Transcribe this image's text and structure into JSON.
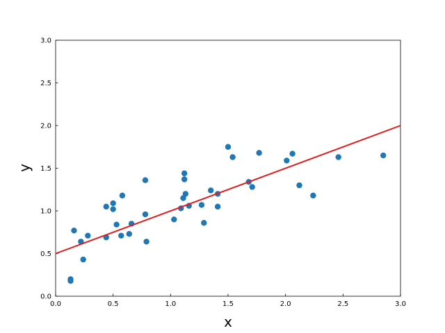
{
  "chart_data": {
    "type": "scatter",
    "x_label": "x",
    "y_label": "y",
    "x": [
      0.13,
      0.13,
      0.16,
      0.22,
      0.24,
      0.28,
      0.44,
      0.44,
      0.5,
      0.5,
      0.53,
      0.57,
      0.58,
      0.64,
      0.66,
      0.78,
      0.78,
      0.79,
      1.03,
      1.09,
      1.11,
      1.12,
      1.12,
      1.13,
      1.16,
      1.27,
      1.29,
      1.35,
      1.41,
      1.41,
      1.5,
      1.54,
      1.68,
      1.71,
      1.77,
      2.01,
      2.06,
      2.12,
      2.24,
      2.46,
      2.85
    ],
    "values": [
      0.2,
      0.18,
      0.77,
      0.64,
      0.43,
      0.71,
      0.69,
      1.05,
      1.09,
      1.02,
      0.84,
      0.71,
      1.18,
      0.73,
      0.85,
      1.36,
      0.96,
      0.64,
      0.9,
      1.03,
      1.15,
      1.44,
      1.37,
      1.2,
      1.06,
      1.07,
      0.86,
      1.24,
      1.2,
      1.05,
      1.75,
      1.63,
      1.34,
      1.28,
      1.68,
      1.59,
      1.67,
      1.3,
      1.18,
      1.63,
      1.65
    ],
    "color": "#1f77b4",
    "fit_line": {
      "x": [
        0,
        3
      ],
      "values": [
        0.5,
        2.0
      ],
      "color": "#e31a1c"
    },
    "xlim": [
      0,
      3
    ],
    "ylim": [
      0,
      3
    ],
    "xticks": [
      {
        "value": 0,
        "label": "0.0"
      },
      {
        "value": 0.5,
        "label": "0.5"
      },
      {
        "value": 1,
        "label": "1.0"
      },
      {
        "value": 1.5,
        "label": "1.5"
      },
      {
        "value": 2,
        "label": "2.0"
      },
      {
        "value": 2.5,
        "label": "2.5"
      },
      {
        "value": 3,
        "label": "3.0"
      }
    ],
    "yticks": [
      {
        "value": 0,
        "label": "0.0"
      },
      {
        "value": 0.5,
        "label": "0.5"
      },
      {
        "value": 1,
        "label": "1.0"
      },
      {
        "value": 1.5,
        "label": "1.5"
      },
      {
        "value": 2,
        "label": "2.0"
      },
      {
        "value": 2.5,
        "label": "2.5"
      },
      {
        "value": 3,
        "label": "3.0"
      }
    ],
    "grid": false
  }
}
